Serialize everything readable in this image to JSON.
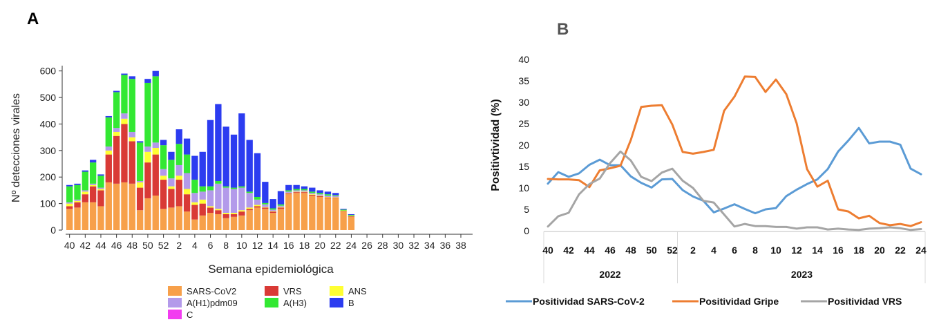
{
  "panel_labels": {
    "a": "A",
    "b": "B"
  },
  "chart_data": [
    {
      "type": "bar",
      "stacked": true,
      "title": "",
      "xlabel": "Semana epidemiológica",
      "ylabel": "Nº detecciones virales",
      "ylim": [
        0,
        620
      ],
      "yticks": [
        0,
        100,
        200,
        300,
        400,
        500,
        600
      ],
      "xtick_labels": [
        "40",
        "42",
        "44",
        "46",
        "48",
        "50",
        "52",
        "2",
        "4",
        "6",
        "8",
        "10",
        "12",
        "14",
        "16",
        "18",
        "20",
        "22",
        "24",
        "26",
        "28",
        "30",
        "32",
        "34",
        "36",
        "38"
      ],
      "weeks": [
        "40",
        "41",
        "42",
        "43",
        "44",
        "45",
        "46",
        "47",
        "48",
        "49",
        "50",
        "51",
        "52",
        "1",
        "2",
        "3",
        "4",
        "5",
        "6",
        "7",
        "8",
        "9",
        "10",
        "11",
        "12",
        "13",
        "14",
        "15",
        "16",
        "17",
        "18",
        "19",
        "20",
        "21",
        "22",
        "23",
        "24",
        "25",
        "26",
        "27",
        "28",
        "29",
        "30",
        "31",
        "32",
        "33",
        "34",
        "35",
        "36",
        "37",
        "38",
        "39"
      ],
      "legend": [
        "SARS-CoV2",
        "VRS",
        "ANS",
        "A(H1)pdm09",
        "A(H3)",
        "B",
        "C"
      ],
      "colors": {
        "SARS-CoV2": "#F7A04A",
        "VRS": "#D93A36",
        "ANS": "#FFFF33",
        "A(H1)pdm09": "#B39AEA",
        "A(H3)": "#33E833",
        "B": "#2C3CF0",
        "C": "#F23CF0"
      },
      "series": [
        {
          "name": "SARS-CoV2",
          "values": [
            80,
            85,
            105,
            105,
            90,
            180,
            175,
            180,
            175,
            75,
            120,
            130,
            80,
            85,
            90,
            70,
            40,
            55,
            65,
            60,
            45,
            50,
            55,
            75,
            85,
            80,
            65,
            80,
            135,
            140,
            140,
            130,
            125,
            120,
            120,
            70,
            50,
            0,
            0,
            0,
            0,
            0,
            0,
            0,
            0,
            0,
            0,
            0,
            0,
            0,
            0,
            0
          ]
        },
        {
          "name": "VRS",
          "values": [
            10,
            20,
            30,
            60,
            60,
            105,
            180,
            220,
            160,
            85,
            135,
            155,
            110,
            70,
            100,
            65,
            55,
            45,
            20,
            15,
            15,
            10,
            15,
            5,
            5,
            5,
            5,
            5,
            3,
            3,
            3,
            3,
            3,
            3,
            2,
            2,
            2,
            0,
            0,
            0,
            0,
            0,
            0,
            0,
            0,
            0,
            0,
            0,
            0,
            0,
            0,
            0
          ]
        },
        {
          "name": "ANS",
          "values": [
            10,
            5,
            10,
            5,
            5,
            15,
            15,
            20,
            15,
            20,
            40,
            25,
            15,
            10,
            15,
            20,
            10,
            15,
            5,
            5,
            5,
            5,
            5,
            5,
            5,
            2,
            2,
            2,
            2,
            2,
            2,
            2,
            2,
            2,
            2,
            2,
            2,
            0,
            0,
            0,
            0,
            0,
            0,
            0,
            0,
            0,
            0,
            0,
            0,
            0,
            0,
            0
          ]
        },
        {
          "name": "A(H1)pdm09",
          "values": [
            5,
            5,
            5,
            5,
            5,
            15,
            15,
            20,
            20,
            5,
            20,
            20,
            25,
            30,
            40,
            60,
            35,
            30,
            60,
            95,
            95,
            90,
            85,
            55,
            20,
            10,
            5,
            5,
            5,
            5,
            5,
            5,
            5,
            5,
            5,
            0,
            0,
            0,
            0,
            0,
            0,
            0,
            0,
            0,
            0,
            0,
            0,
            0,
            0,
            0,
            0,
            0
          ]
        },
        {
          "name": "A(H3)",
          "values": [
            60,
            55,
            70,
            80,
            45,
            110,
            135,
            145,
            200,
            145,
            240,
            250,
            90,
            70,
            80,
            70,
            50,
            20,
            15,
            10,
            5,
            5,
            5,
            5,
            10,
            5,
            5,
            5,
            5,
            5,
            5,
            5,
            5,
            5,
            3,
            3,
            3,
            0,
            0,
            0,
            0,
            0,
            0,
            0,
            0,
            0,
            0,
            0,
            0,
            0,
            0,
            0
          ]
        },
        {
          "name": "B",
          "values": [
            5,
            5,
            5,
            10,
            5,
            5,
            5,
            5,
            10,
            5,
            15,
            20,
            20,
            30,
            55,
            60,
            90,
            130,
            250,
            290,
            225,
            200,
            275,
            195,
            165,
            80,
            35,
            50,
            20,
            15,
            10,
            15,
            10,
            10,
            8,
            3,
            3,
            0,
            0,
            0,
            0,
            0,
            0,
            0,
            0,
            0,
            0,
            0,
            0,
            0,
            0,
            0
          ]
        },
        {
          "name": "C",
          "values": [
            0,
            0,
            0,
            0,
            0,
            0,
            0,
            0,
            0,
            0,
            0,
            0,
            0,
            0,
            0,
            0,
            0,
            0,
            0,
            0,
            0,
            0,
            0,
            0,
            0,
            0,
            0,
            0,
            0,
            0,
            0,
            0,
            0,
            0,
            0,
            0,
            0,
            0,
            0,
            0,
            0,
            0,
            0,
            0,
            0,
            0,
            0,
            0,
            0,
            0,
            0,
            0
          ]
        }
      ]
    },
    {
      "type": "line",
      "title": "",
      "xlabel": "",
      "ylabel": "Positivtividad (%)",
      "ylim": [
        0,
        40
      ],
      "yticks": [
        0,
        5,
        10,
        15,
        20,
        25,
        30,
        35,
        40
      ],
      "x": [
        "40",
        "41",
        "42",
        "43",
        "44",
        "45",
        "46",
        "47",
        "48",
        "49",
        "50",
        "51",
        "52",
        "1",
        "2",
        "3",
        "4",
        "5",
        "6",
        "7",
        "8",
        "9",
        "10",
        "11",
        "12",
        "13",
        "14",
        "15",
        "16",
        "17",
        "18",
        "19",
        "20",
        "21",
        "22",
        "23",
        "24"
      ],
      "xtick_labels": [
        "40",
        "42",
        "44",
        "46",
        "48",
        "50",
        "52",
        "2",
        "4",
        "6",
        "8",
        "10",
        "12",
        "14",
        "16",
        "18",
        "20",
        "22",
        "24"
      ],
      "year_groups": [
        {
          "label": "2022",
          "from": "40",
          "to": "52"
        },
        {
          "label": "2023",
          "from": "1",
          "to": "24"
        }
      ],
      "grid": false,
      "legend_position": "bottom",
      "series": [
        {
          "name": "Positividad SARS-CoV-2",
          "color": "#5B9BD5",
          "values": [
            11,
            13.7,
            12.6,
            13.4,
            15.4,
            16.6,
            15.3,
            15.3,
            12.7,
            11.2,
            10.1,
            12,
            12.1,
            9.5,
            8,
            7,
            4.3,
            5.2,
            6.2,
            5.1,
            4.1,
            5,
            5.3,
            8.1,
            9.6,
            10.9,
            12,
            14.4,
            18.5,
            21.1,
            24,
            20.4,
            20.8,
            20.8,
            20.1,
            14.5,
            13.2
          ]
        },
        {
          "name": "Positividad Gripe",
          "color": "#ED7D31",
          "values": [
            12.1,
            12,
            12,
            11.8,
            10.2,
            14.1,
            14.6,
            15.2,
            21.2,
            28.9,
            29.2,
            29.3,
            24.8,
            18.4,
            18,
            18.4,
            18.9,
            28,
            31.3,
            36,
            35.9,
            32.4,
            35.3,
            31.9,
            25.1,
            14.4,
            10.3,
            11.7,
            5,
            4.5,
            2.9,
            3.5,
            1.8,
            1.3,
            1.6,
            1.1,
            2
          ]
        },
        {
          "name": "Positividad VRS",
          "color": "#A5A5A5",
          "values": [
            1,
            3.4,
            4.2,
            8.5,
            10.9,
            12.2,
            15.8,
            18.5,
            16.4,
            12.6,
            11.6,
            13.6,
            14.5,
            11.7,
            10,
            7,
            6.6,
            3.8,
            1,
            1.6,
            1.1,
            1.1,
            0.9,
            0.9,
            0.5,
            0.8,
            0.8,
            0.3,
            0.5,
            0.3,
            0.2,
            0.5,
            0.6,
            0.8,
            0.6,
            0.2,
            0.4
          ]
        }
      ]
    }
  ]
}
